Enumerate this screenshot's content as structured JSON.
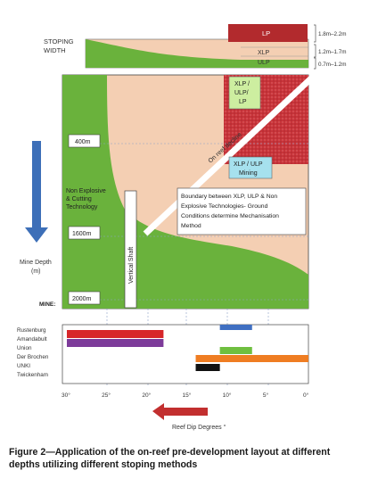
{
  "header": {
    "stoping_width_line1": "STOPING",
    "stoping_width_line2": "WIDTH"
  },
  "methods": {
    "lp": "LP",
    "xlp": "XLP",
    "ulp": "ULP"
  },
  "widths": {
    "lp": "1.8m–2.2m",
    "xlp": "1.2m–1.7m",
    "ulp": "0.7m–1.2m"
  },
  "labels": {
    "xlp_ulp_lp_1": "XLP /",
    "xlp_ulp_lp_2": "ULP/",
    "xlp_ulp_lp_3": "LP",
    "xlp_ulp_mining_1": "XLP / ULP",
    "xlp_ulp_mining_2": "Mining",
    "on_reef_decline": "On reef decline",
    "non_explosive_1": "Non Explosive",
    "non_explosive_2": "& Cutting",
    "non_explosive_3": "Technology",
    "vertical_shaft": "Vertical Shaft",
    "boundary_1": "Boundary between XLP, ULP & Non",
    "boundary_2": "Explosive Technologies- Ground",
    "boundary_3": "Conditions determine Mechanisation",
    "boundary_4": "Method"
  },
  "depth": {
    "d400": "400m",
    "d1600": "1600m",
    "d2000": "2000m",
    "axis_label_1": "Mine Depth",
    "axis_label_2": "(m)",
    "mine": "MINE:"
  },
  "mines": [
    "Rustenburg",
    "Amandabult",
    "Union",
    "Der Brochen",
    "UNKI",
    "Twickenham"
  ],
  "dip_ticks": [
    "30°",
    "25°",
    "20°",
    "15°",
    "10°",
    "5°",
    "0°"
  ],
  "dip_axis_label": "Reef Dip Degrees °",
  "mine_bars": [
    {
      "mine": "Rustenburg / Amandabult",
      "from": 30,
      "to": 18,
      "color": "#d7262a"
    },
    {
      "mine": "Amandabult / Union",
      "from": 30,
      "to": 18,
      "color": "#7d3b9a"
    },
    {
      "mine": "Der Brochen",
      "from": 11,
      "to": 7,
      "color": "#3f6fc2"
    },
    {
      "mine": "Der Brochen",
      "from": 11,
      "to": 7,
      "color": "#6fbf3f"
    },
    {
      "mine": "UNKI",
      "from": 14,
      "to": 0,
      "color": "#ef7d22"
    },
    {
      "mine": "Twickenham",
      "from": 14,
      "to": 11,
      "color": "#111111"
    }
  ],
  "colors": {
    "green": "#6ab23c",
    "peach": "#f4cfb3",
    "red": "#c8343a",
    "lp_bar": "#b22a2d",
    "blue_arrow": "#3d6fb8",
    "red_arrow": "#c22f2f",
    "cyan_box": "#a6e1ee",
    "lightgreen_box": "#cdeea0"
  },
  "caption": {
    "line1": "Figure 2—Application of the on-reef pre-development layout at different",
    "line2": "depths utilizing different stoping methods"
  }
}
